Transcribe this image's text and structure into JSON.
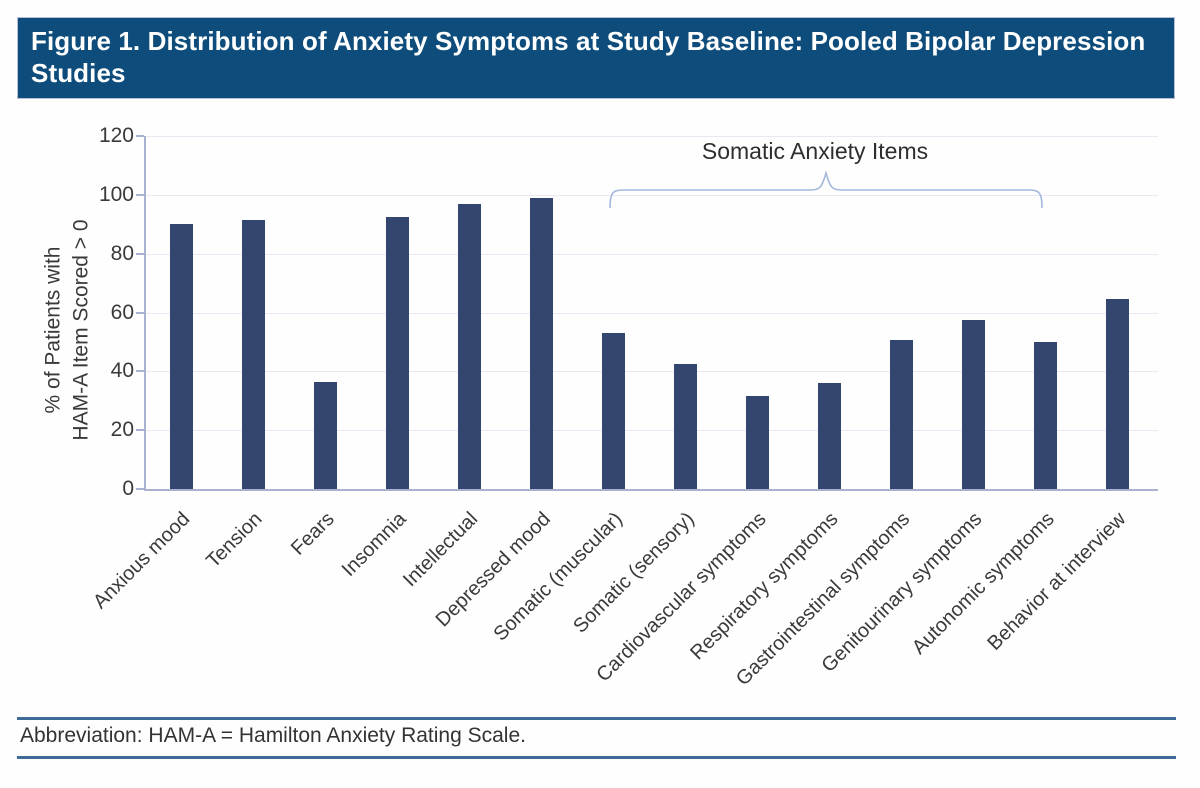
{
  "figure": {
    "title": "Figure 1. Distribution of Anxiety Symptoms at Study Baseline: Pooled Bipolar Depression Studies",
    "footnote": "Abbreviation: HAM-A = Hamilton Anxiety Rating Scale."
  },
  "chart_data": {
    "type": "bar",
    "title": "Figure 1. Distribution of Anxiety Symptoms at Study Baseline: Pooled Bipolar Depression Studies",
    "ylabel_lines": [
      "% of Patients with",
      "HAM-A Item Scored > 0"
    ],
    "xlabel": "",
    "ylim": [
      0,
      120
    ],
    "yticks": [
      0,
      20,
      40,
      60,
      80,
      100,
      120
    ],
    "grid": true,
    "legend_position": "none",
    "categories": [
      "Anxious mood",
      "Tension",
      "Fears",
      "Insomnia",
      "Intellectual",
      "Depressed mood",
      "Somatic (muscular)",
      "Somatic (sensory)",
      "Cardiovascular symptoms",
      "Respiratory symptoms",
      "Gastrointestinal symptoms",
      "Genitourinary symptoms",
      "Autonomic symptoms",
      "Behavior at interview"
    ],
    "values": [
      90,
      91.5,
      36.5,
      92.5,
      97,
      99,
      53,
      42.5,
      31.5,
      36,
      50.5,
      57.5,
      50,
      64.5
    ],
    "annotation": {
      "label": "Somatic Anxiety Items",
      "from_category": "Somatic (muscular)",
      "to_category": "Autonomic symptoms"
    }
  },
  "colors": {
    "banner_bg": "#0e4d7b",
    "banner_text": "#ffffff",
    "bar": "#324670",
    "axis": "#a9b2d0",
    "grid": "#e8e9f2",
    "text": "#3a3a3a",
    "bracket": "#a5b8dc",
    "footer_rule": "#3e6b9a"
  }
}
